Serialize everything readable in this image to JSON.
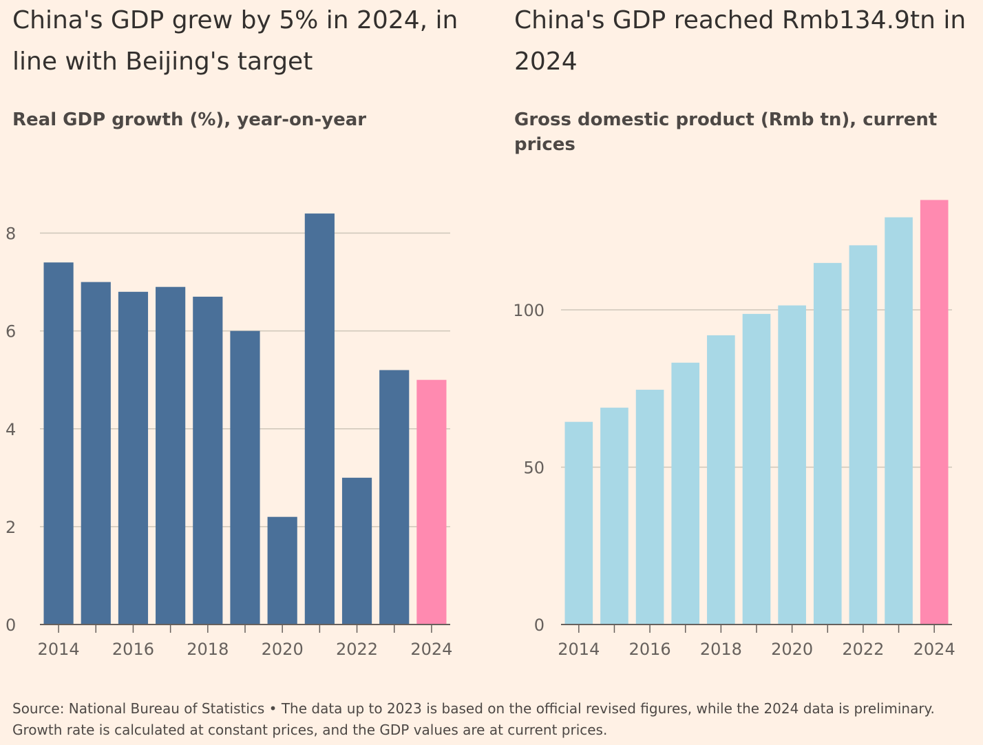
{
  "charts": [
    {
      "title": "China's GDP grew by 5% in 2024, in line with Beijing's target",
      "subtitle": "Real GDP growth (%), year-on-year"
    },
    {
      "title": "China's GDP reached Rmb134.9tn in 2024",
      "subtitle": "Gross domestic product (Rmb tn), current prices"
    }
  ],
  "source_note": "Source: National Bureau of Statistics • The data up to 2023 is based on the official revised figures, while the 2024 data is preliminary. Growth rate is calculated at constant prices, and the GDP values are at current prices.",
  "chart_data": [
    {
      "type": "bar",
      "title": "China's GDP grew by 5% in 2024, in line with Beijing's target",
      "subtitle": "Real GDP growth (%), year-on-year",
      "xlabel": "",
      "ylabel": "",
      "categories": [
        "2014",
        "2015",
        "2016",
        "2017",
        "2018",
        "2019",
        "2020",
        "2021",
        "2022",
        "2023",
        "2024"
      ],
      "values": [
        7.4,
        7.0,
        6.8,
        6.9,
        6.7,
        6.0,
        2.2,
        8.4,
        3.0,
        5.2,
        5.0
      ],
      "highlight_index": 10,
      "colors": {
        "bar": "#4a7099",
        "highlight": "#ff8ab0",
        "grid": "#cec6b9",
        "axis": "#66605c"
      },
      "ylim": [
        0,
        8.5
      ],
      "yticks": [
        0,
        2,
        4,
        6,
        8
      ],
      "xtick_labels": [
        "2014",
        "2016",
        "2018",
        "2020",
        "2022",
        "2024"
      ],
      "grid": true
    },
    {
      "type": "bar",
      "title": "China's GDP reached Rmb134.9tn in 2024",
      "subtitle": "Gross domestic product (Rmb tn), current prices",
      "xlabel": "",
      "ylabel": "",
      "categories": [
        "2014",
        "2015",
        "2016",
        "2017",
        "2018",
        "2019",
        "2020",
        "2021",
        "2022",
        "2023",
        "2024"
      ],
      "values": [
        64.4,
        68.9,
        74.6,
        83.2,
        91.9,
        98.7,
        101.4,
        114.9,
        120.5,
        129.4,
        134.9
      ],
      "highlight_index": 10,
      "colors": {
        "bar": "#a8d8e6",
        "highlight": "#ff8ab0",
        "grid": "#cec6b9",
        "axis": "#66605c"
      },
      "ylim": [
        0,
        135
      ],
      "yticks": [
        0,
        50,
        100
      ],
      "xtick_labels": [
        "2014",
        "2016",
        "2018",
        "2020",
        "2022",
        "2024"
      ],
      "grid": true
    }
  ]
}
